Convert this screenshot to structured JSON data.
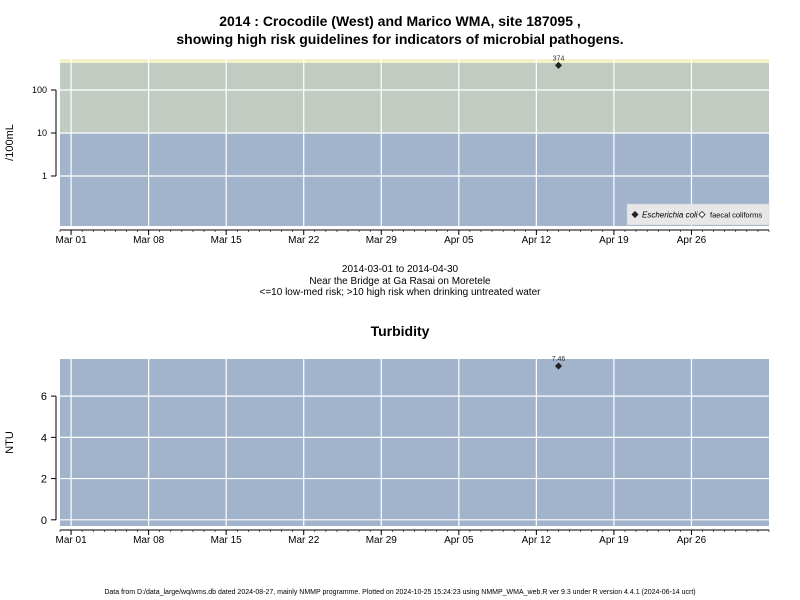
{
  "colors": {
    "band_low": "#a2b4cc",
    "band_high": "#c2cbc2",
    "band_top": "#f5f0c8",
    "grid": "#ffffff",
    "marker": "#222222"
  },
  "chart_data": [
    {
      "type": "scatter",
      "title_line1": "2014 : Crocodile (West) and Marico WMA, site 187095 ,",
      "title_line2": "showing high risk guidelines for indicators of microbial pathogens.",
      "ylabel": "/100mL",
      "yscale": "log",
      "yticks": [
        "1",
        "10",
        "100"
      ],
      "ytick_values": [
        1,
        10,
        100
      ],
      "xticks": [
        "Mar 01",
        "Mar 08",
        "Mar 15",
        "Mar 22",
        "Mar 29",
        "Apr 05",
        "Apr 12",
        "Apr 19",
        "Apr 26"
      ],
      "xtick_dates": [
        "2014-03-01",
        "2014-03-08",
        "2014-03-15",
        "2014-03-22",
        "2014-03-29",
        "2014-04-05",
        "2014-04-12",
        "2014-04-19",
        "2014-04-26"
      ],
      "xlim": [
        "2014-02-28",
        "2014-05-03"
      ],
      "bands": [
        {
          "label": "low-med risk",
          "from": 0,
          "to": 10
        },
        {
          "label": "high risk",
          "from": 10,
          "to": 1000
        }
      ],
      "series": [
        {
          "name": "Escherichia coli",
          "marker": "filled-diamond",
          "points": [
            {
              "date": "2014-04-14",
              "value": 374,
              "label": "374"
            }
          ]
        },
        {
          "name": "faecal coliforms",
          "marker": "open-diamond",
          "points": []
        }
      ],
      "legend_position": "bottom-right",
      "caption": [
        "2014-03-01 to 2014-04-30",
        "Near the Bridge at Ga Rasai on Moretele",
        "<=10 low-med risk; >10 high risk when drinking untreated water"
      ]
    },
    {
      "type": "scatter",
      "title": "Turbidity",
      "ylabel": "NTU",
      "yticks": [
        "0",
        "2",
        "4",
        "6"
      ],
      "ytick_values": [
        0,
        2,
        4,
        6
      ],
      "ylim": [
        -0.3,
        7.8
      ],
      "xticks": [
        "Mar 01",
        "Mar 08",
        "Mar 15",
        "Mar 22",
        "Mar 29",
        "Apr 05",
        "Apr 12",
        "Apr 19",
        "Apr 26"
      ],
      "xtick_dates": [
        "2014-03-01",
        "2014-03-08",
        "2014-03-15",
        "2014-03-22",
        "2014-03-29",
        "2014-04-05",
        "2014-04-12",
        "2014-04-19",
        "2014-04-26"
      ],
      "xlim": [
        "2014-02-28",
        "2014-05-03"
      ],
      "series": [
        {
          "marker": "filled-diamond",
          "points": [
            {
              "date": "2014-04-14",
              "value": 7.46,
              "label": "7.46"
            }
          ]
        }
      ]
    }
  ],
  "footer": "Data from D:/data_large/wq/wms.db dated 2024-08-27, mainly NMMP programme. Plotted on 2024-10-25 15:24:23 using NMMP_WMA_web.R ver 9.3 under R version 4.4.1 (2024-06-14 ucrt)"
}
